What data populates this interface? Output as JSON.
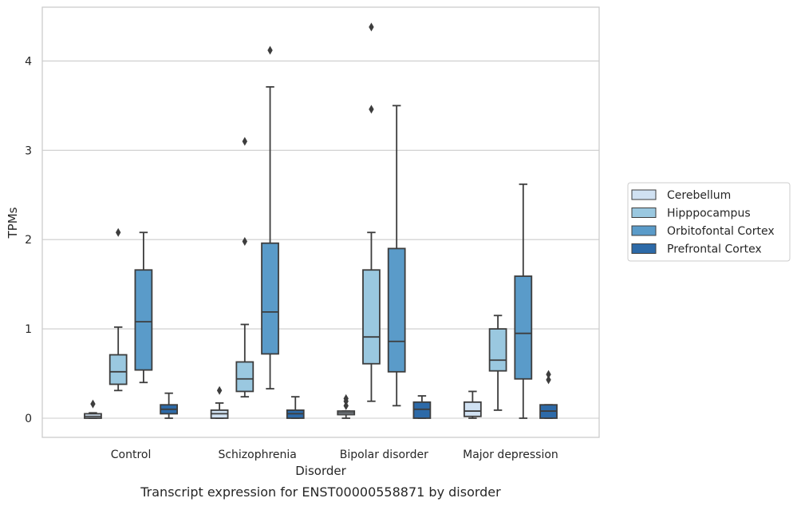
{
  "chart_data": {
    "type": "box",
    "caption": "Transcript expression for ENST00000558871 by disorder",
    "xlabel": "Disorder",
    "ylabel": "TPMs",
    "ylim": [
      -0.21,
      4.6
    ],
    "yticks": [
      0,
      1,
      2,
      3,
      4
    ],
    "categories": [
      "Control",
      "Schizophrenia",
      "Bipolar disorder",
      "Major depression"
    ],
    "legend_position": "right",
    "grid": "horizontal",
    "series": [
      {
        "name": "Cerebellum",
        "color": "#d0e1f2",
        "boxes": [
          {
            "whislo": 0.0,
            "q1": 0.0,
            "med": 0.02,
            "q3": 0.05,
            "whishi": 0.06,
            "fliers": [
              0.16
            ]
          },
          {
            "whislo": 0.0,
            "q1": 0.0,
            "med": 0.05,
            "q3": 0.09,
            "whishi": 0.17,
            "fliers": [
              0.31
            ]
          },
          {
            "whislo": 0.0,
            "q1": 0.04,
            "med": 0.06,
            "q3": 0.08,
            "whishi": 0.08,
            "fliers": [
              0.14,
              0.19,
              0.22
            ]
          },
          {
            "whislo": 0.0,
            "q1": 0.02,
            "med": 0.08,
            "q3": 0.18,
            "whishi": 0.3,
            "fliers": []
          }
        ]
      },
      {
        "name": "Hipppocampus",
        "color": "#9ac8e0",
        "boxes": [
          {
            "whislo": 0.31,
            "q1": 0.38,
            "med": 0.52,
            "q3": 0.71,
            "whishi": 1.02,
            "fliers": [
              2.08
            ]
          },
          {
            "whislo": 0.24,
            "q1": 0.3,
            "med": 0.44,
            "q3": 0.63,
            "whishi": 1.05,
            "fliers": [
              1.98,
              3.1
            ]
          },
          {
            "whislo": 0.19,
            "q1": 0.61,
            "med": 0.91,
            "q3": 1.66,
            "whishi": 2.08,
            "fliers": [
              3.46,
              4.38
            ]
          },
          {
            "whislo": 0.09,
            "q1": 0.53,
            "med": 0.65,
            "q3": 1.0,
            "whishi": 1.15,
            "fliers": []
          }
        ]
      },
      {
        "name": "Orbitofontal Cortex",
        "color": "#5a9bc9",
        "boxes": [
          {
            "whislo": 0.4,
            "q1": 0.54,
            "med": 1.08,
            "q3": 1.66,
            "whishi": 2.08,
            "fliers": []
          },
          {
            "whislo": 0.33,
            "q1": 0.72,
            "med": 1.19,
            "q3": 1.96,
            "whishi": 3.71,
            "fliers": [
              4.12
            ]
          },
          {
            "whislo": 0.14,
            "q1": 0.52,
            "med": 0.86,
            "q3": 1.9,
            "whishi": 3.5,
            "fliers": []
          },
          {
            "whislo": 0.0,
            "q1": 0.44,
            "med": 0.95,
            "q3": 1.59,
            "whishi": 2.62,
            "fliers": []
          }
        ]
      },
      {
        "name": "Prefrontal Cortex",
        "color": "#2d6aa8",
        "boxes": [
          {
            "whislo": 0.0,
            "q1": 0.05,
            "med": 0.1,
            "q3": 0.15,
            "whishi": 0.28,
            "fliers": []
          },
          {
            "whislo": 0.0,
            "q1": 0.0,
            "med": 0.05,
            "q3": 0.09,
            "whishi": 0.24,
            "fliers": []
          },
          {
            "whislo": 0.0,
            "q1": 0.0,
            "med": 0.1,
            "q3": 0.18,
            "whishi": 0.25,
            "fliers": []
          },
          {
            "whislo": 0.0,
            "q1": 0.0,
            "med": 0.08,
            "q3": 0.15,
            "whishi": 0.15,
            "fliers": [
              0.43,
              0.49
            ]
          }
        ]
      }
    ]
  }
}
